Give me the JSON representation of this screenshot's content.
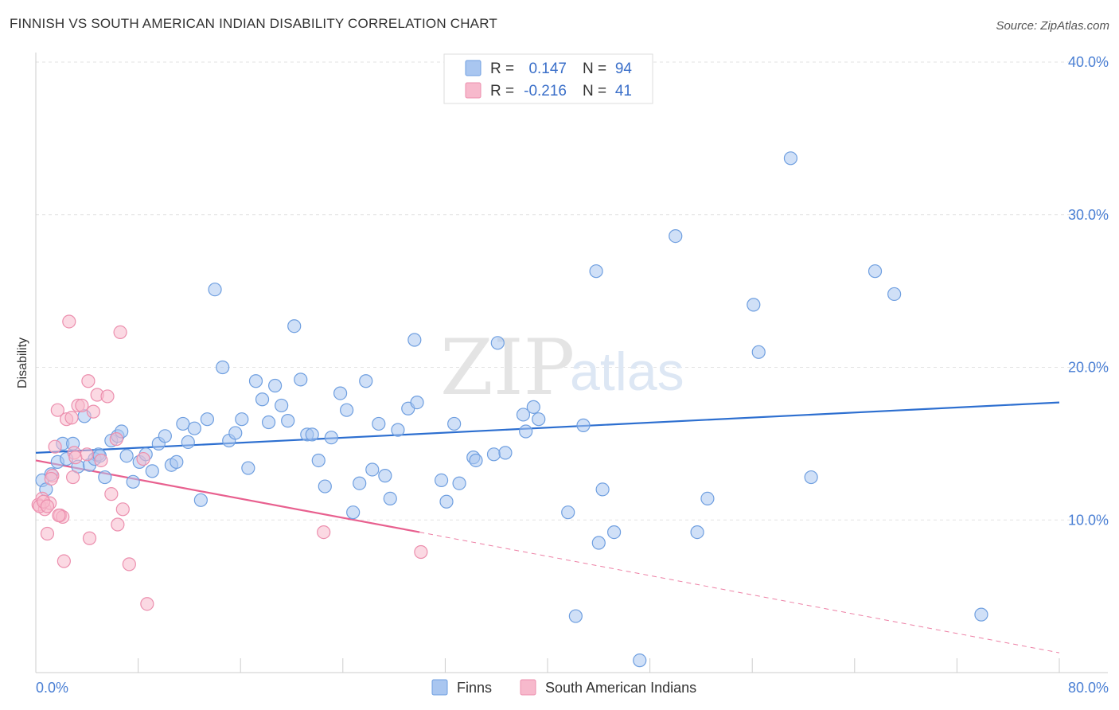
{
  "title": "FINNISH VS SOUTH AMERICAN INDIAN DISABILITY CORRELATION CHART",
  "source": "Source: ZipAtlas.com",
  "watermark": {
    "zip": "ZIP",
    "atlas": "atlas"
  },
  "legend": {
    "rows": [
      {
        "r_label": "R =",
        "r_value": "0.147",
        "n_label": "N =",
        "n_value": "94",
        "color": "#a9c6f0",
        "stroke": "#6f9fe0"
      },
      {
        "r_label": "R =",
        "r_value": "-0.216",
        "n_label": "N =",
        "n_value": "41",
        "color": "#f7b9cc",
        "stroke": "#ec8fae"
      }
    ]
  },
  "bottom_legend": [
    {
      "label": "Finns",
      "color": "#a9c6f0",
      "stroke": "#6f9fe0"
    },
    {
      "label": "South American Indians",
      "color": "#f7b9cc",
      "stroke": "#ec8fae"
    }
  ],
  "chart_data": {
    "type": "scatter",
    "xlabel": "",
    "ylabel": "Disability",
    "xlim": [
      0,
      80
    ],
    "ylim": [
      0,
      40
    ],
    "x_tick_labels": [
      "0.0%",
      "80.0%"
    ],
    "y_ticks": [
      10,
      20,
      30,
      40
    ],
    "y_tick_labels": [
      "10.0%",
      "20.0%",
      "30.0%",
      "40.0%"
    ],
    "grid": true,
    "legend_position": "top-center",
    "series": [
      {
        "name": "Finns",
        "color": "#6f9fe0",
        "fill": "#a9c6f0",
        "trend": {
          "x": [
            0,
            80
          ],
          "y": [
            14.4,
            17.7
          ],
          "style": "solid",
          "color": "#2d6fd0"
        },
        "points": [
          [
            0.5,
            12.6
          ],
          [
            0.8,
            12.0
          ],
          [
            1.2,
            13.0
          ],
          [
            1.7,
            13.8
          ],
          [
            2.1,
            15.0
          ],
          [
            2.4,
            14.0
          ],
          [
            2.9,
            15.0
          ],
          [
            3.3,
            13.5
          ],
          [
            3.8,
            16.8
          ],
          [
            4.2,
            13.6
          ],
          [
            4.6,
            14.0
          ],
          [
            4.9,
            14.3
          ],
          [
            5.4,
            12.8
          ],
          [
            5.9,
            15.2
          ],
          [
            6.4,
            15.5
          ],
          [
            6.7,
            15.8
          ],
          [
            7.1,
            14.2
          ],
          [
            7.6,
            12.5
          ],
          [
            8.1,
            13.8
          ],
          [
            8.6,
            14.3
          ],
          [
            9.1,
            13.2
          ],
          [
            9.6,
            15.0
          ],
          [
            10.1,
            15.5
          ],
          [
            10.6,
            13.6
          ],
          [
            11.0,
            13.8
          ],
          [
            11.5,
            16.3
          ],
          [
            11.9,
            15.1
          ],
          [
            12.4,
            16.0
          ],
          [
            12.9,
            11.3
          ],
          [
            13.4,
            16.6
          ],
          [
            14.0,
            25.1
          ],
          [
            14.6,
            20.0
          ],
          [
            15.1,
            15.2
          ],
          [
            15.6,
            15.7
          ],
          [
            16.1,
            16.6
          ],
          [
            16.6,
            13.4
          ],
          [
            17.2,
            19.1
          ],
          [
            17.7,
            17.9
          ],
          [
            18.2,
            16.4
          ],
          [
            18.7,
            18.8
          ],
          [
            19.2,
            17.5
          ],
          [
            19.7,
            16.5
          ],
          [
            20.2,
            22.7
          ],
          [
            20.7,
            19.2
          ],
          [
            21.2,
            15.6
          ],
          [
            21.6,
            15.6
          ],
          [
            22.1,
            13.9
          ],
          [
            22.6,
            12.2
          ],
          [
            23.1,
            15.4
          ],
          [
            23.8,
            18.3
          ],
          [
            24.3,
            17.2
          ],
          [
            24.8,
            10.5
          ],
          [
            25.3,
            12.4
          ],
          [
            25.8,
            19.1
          ],
          [
            26.3,
            13.3
          ],
          [
            26.8,
            16.3
          ],
          [
            27.3,
            12.9
          ],
          [
            27.7,
            11.4
          ],
          [
            28.3,
            15.9
          ],
          [
            29.1,
            17.3
          ],
          [
            29.6,
            21.8
          ],
          [
            29.8,
            17.7
          ],
          [
            31.7,
            12.6
          ],
          [
            32.1,
            11.2
          ],
          [
            32.7,
            16.3
          ],
          [
            33.1,
            12.4
          ],
          [
            34.2,
            14.1
          ],
          [
            34.4,
            13.9
          ],
          [
            35.8,
            14.3
          ],
          [
            36.7,
            14.4
          ],
          [
            36.1,
            21.6
          ],
          [
            38.1,
            16.9
          ],
          [
            38.3,
            15.8
          ],
          [
            38.9,
            17.4
          ],
          [
            39.3,
            16.6
          ],
          [
            41.6,
            10.5
          ],
          [
            42.2,
            3.7
          ],
          [
            42.8,
            16.2
          ],
          [
            43.8,
            26.3
          ],
          [
            44.0,
            8.5
          ],
          [
            44.3,
            12.0
          ],
          [
            45.2,
            9.2
          ],
          [
            47.2,
            0.8
          ],
          [
            50.0,
            28.6
          ],
          [
            51.7,
            9.2
          ],
          [
            52.5,
            11.4
          ],
          [
            56.1,
            24.1
          ],
          [
            56.5,
            21.0
          ],
          [
            59.0,
            33.7
          ],
          [
            60.6,
            12.8
          ],
          [
            65.6,
            26.3
          ],
          [
            67.1,
            24.8
          ],
          [
            73.9,
            3.8
          ],
          [
            5.0,
            14.2
          ]
        ]
      },
      {
        "name": "South American Indians",
        "color": "#ec8fae",
        "fill": "#f7b9cc",
        "trend": {
          "x": [
            0,
            30
          ],
          "y": [
            13.9,
            9.2
          ],
          "style": "solid",
          "color": "#e8608f",
          "dashed_extension": {
            "x": [
              30,
              80
            ],
            "y": [
              9.2,
              1.3
            ]
          }
        },
        "points": [
          [
            0.2,
            11.0
          ],
          [
            0.5,
            11.4
          ],
          [
            0.7,
            10.7
          ],
          [
            0.9,
            9.1
          ],
          [
            1.1,
            11.1
          ],
          [
            1.3,
            12.9
          ],
          [
            1.5,
            14.8
          ],
          [
            1.7,
            17.2
          ],
          [
            1.9,
            10.3
          ],
          [
            2.1,
            10.2
          ],
          [
            2.2,
            7.3
          ],
          [
            2.4,
            16.6
          ],
          [
            2.6,
            23.0
          ],
          [
            2.8,
            16.7
          ],
          [
            2.9,
            12.8
          ],
          [
            3.0,
            14.4
          ],
          [
            3.1,
            14.1
          ],
          [
            3.3,
            17.5
          ],
          [
            3.6,
            17.5
          ],
          [
            4.1,
            19.1
          ],
          [
            4.2,
            8.8
          ],
          [
            4.5,
            17.1
          ],
          [
            4.8,
            18.2
          ],
          [
            5.1,
            13.9
          ],
          [
            5.6,
            18.1
          ],
          [
            5.9,
            11.7
          ],
          [
            6.3,
            15.3
          ],
          [
            6.4,
            9.7
          ],
          [
            6.6,
            22.3
          ],
          [
            6.8,
            10.7
          ],
          [
            7.3,
            7.1
          ],
          [
            8.4,
            14.0
          ],
          [
            8.7,
            4.5
          ],
          [
            0.3,
            10.9
          ],
          [
            0.6,
            11.2
          ],
          [
            0.9,
            10.9
          ],
          [
            1.2,
            12.7
          ],
          [
            1.8,
            10.3
          ],
          [
            22.5,
            9.2
          ],
          [
            30.1,
            7.9
          ],
          [
            4.0,
            14.3
          ]
        ]
      }
    ]
  }
}
